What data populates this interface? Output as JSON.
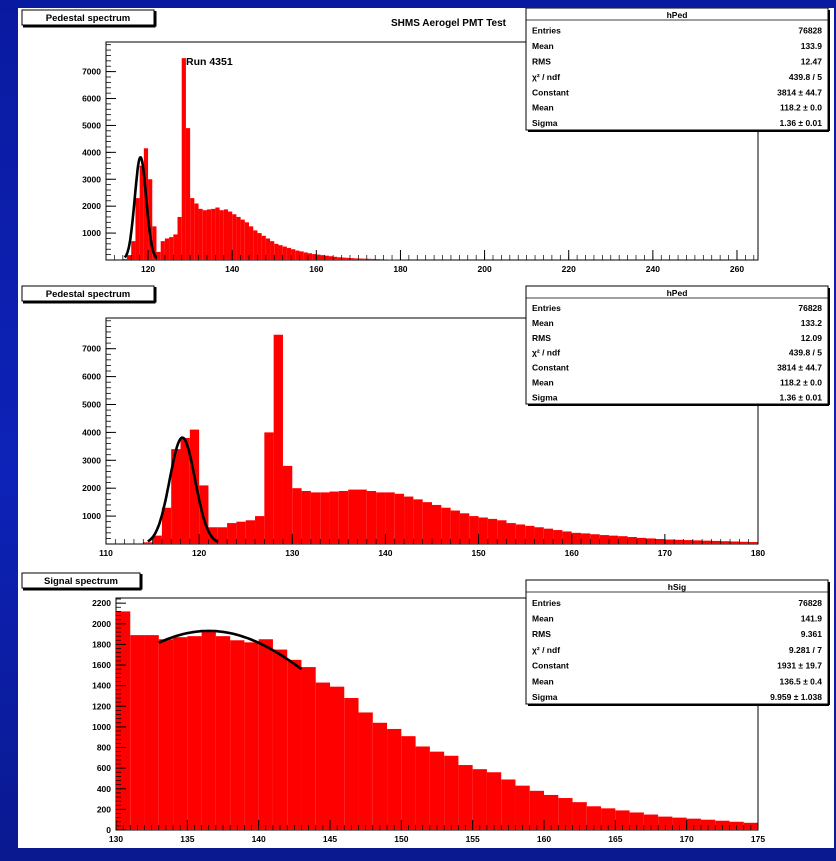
{
  "figure": {
    "title": "SHMS Aerogel PMT Test",
    "annotation": "Run  4351"
  },
  "colors": {
    "histogram_fill": "#ff0000",
    "fit_line": "#000000",
    "frame": "#000000",
    "background": "#ffffff"
  },
  "chart_data": [
    {
      "type": "bar",
      "pad_title": "Pedestal spectrum",
      "xlabel": "",
      "ylabel": "",
      "xlim": [
        110,
        265
      ],
      "ylim": [
        0,
        8100
      ],
      "x_ticks": [
        120,
        140,
        160,
        180,
        200,
        220,
        240,
        260
      ],
      "y_ticks": [
        1000,
        2000,
        3000,
        4000,
        5000,
        6000,
        7000
      ],
      "bin_width": 1,
      "bins_x": [
        114,
        115,
        116,
        117,
        118,
        119,
        120,
        121,
        122,
        123,
        124,
        125,
        126,
        127,
        128,
        129,
        130,
        131,
        132,
        133,
        134,
        135,
        136,
        137,
        138,
        139,
        140,
        141,
        142,
        143,
        144,
        145,
        146,
        147,
        148,
        149,
        150,
        151,
        152,
        153,
        154,
        155,
        156,
        157,
        158,
        159,
        160,
        161,
        162,
        163,
        164,
        165,
        166,
        167,
        168,
        169,
        170,
        171,
        172,
        173,
        174,
        175,
        176,
        177,
        178,
        179,
        180
      ],
      "bins_y": [
        40,
        180,
        700,
        2300,
        3500,
        4150,
        3000,
        1250,
        300,
        700,
        800,
        850,
        950,
        1600,
        7500,
        4900,
        2300,
        2100,
        1900,
        1850,
        1880,
        1900,
        1950,
        1850,
        1880,
        1800,
        1700,
        1600,
        1500,
        1400,
        1250,
        1100,
        1000,
        900,
        800,
        700,
        600,
        550,
        500,
        450,
        400,
        350,
        320,
        280,
        250,
        220,
        200,
        180,
        160,
        140,
        120,
        100,
        90,
        80,
        70,
        60,
        55,
        50,
        45,
        40,
        35,
        30,
        25,
        20,
        15,
        10,
        5
      ],
      "fit": {
        "constant": 3814,
        "mean": 118.2,
        "sigma": 1.36,
        "x_range": [
          114.5,
          122
        ]
      },
      "stats": {
        "name": "hPed",
        "rows": [
          [
            "Entries",
            "76828"
          ],
          [
            "Mean",
            "133.9"
          ],
          [
            "RMS",
            "12.47"
          ],
          [
            "χ² / ndf",
            "439.8 / 5"
          ],
          [
            "Constant",
            "3814 ± 44.7"
          ],
          [
            "Mean",
            "118.2 ± 0.0"
          ],
          [
            "Sigma",
            "1.36 ± 0.01"
          ]
        ]
      }
    },
    {
      "type": "bar",
      "pad_title": "Pedestal spectrum",
      "xlabel": "",
      "ylabel": "",
      "xlim": [
        110,
        180
      ],
      "ylim": [
        0,
        8100
      ],
      "x_ticks": [
        110,
        120,
        130,
        140,
        150,
        160,
        170,
        180
      ],
      "y_ticks": [
        1000,
        2000,
        3000,
        4000,
        5000,
        6000,
        7000
      ],
      "bin_width": 1,
      "bins_x": [
        114,
        115,
        116,
        117,
        118,
        119,
        120,
        121,
        122,
        123,
        124,
        125,
        126,
        127,
        128,
        129,
        130,
        131,
        132,
        133,
        134,
        135,
        136,
        137,
        138,
        139,
        140,
        141,
        142,
        143,
        144,
        145,
        146,
        147,
        148,
        149,
        150,
        151,
        152,
        153,
        154,
        155,
        156,
        157,
        158,
        159,
        160,
        161,
        162,
        163,
        164,
        165,
        166,
        167,
        168,
        169,
        170,
        171,
        172,
        173,
        174,
        175,
        176,
        177,
        178,
        179
      ],
      "bins_y": [
        60,
        300,
        1300,
        3400,
        3800,
        4100,
        2100,
        600,
        600,
        750,
        800,
        850,
        1000,
        4000,
        7500,
        2800,
        2000,
        1900,
        1850,
        1850,
        1880,
        1900,
        1950,
        1950,
        1900,
        1850,
        1850,
        1800,
        1700,
        1600,
        1500,
        1400,
        1300,
        1200,
        1100,
        1000,
        950,
        900,
        850,
        750,
        700,
        650,
        600,
        550,
        500,
        450,
        400,
        380,
        350,
        320,
        300,
        280,
        250,
        220,
        200,
        180,
        160,
        150,
        140,
        130,
        120,
        110,
        100,
        90,
        80,
        70
      ],
      "fit": {
        "constant": 3814,
        "mean": 118.2,
        "sigma": 1.36,
        "x_range": [
          114.5,
          122
        ]
      },
      "stats": {
        "name": "hPed",
        "rows": [
          [
            "Entries",
            "76828"
          ],
          [
            "Mean",
            "133.2"
          ],
          [
            "RMS",
            "12.09"
          ],
          [
            "χ² / ndf",
            "439.8 / 5"
          ],
          [
            "Constant",
            "3814 ± 44.7"
          ],
          [
            "Mean",
            "118.2 ± 0.0"
          ],
          [
            "Sigma",
            "1.36 ± 0.01"
          ]
        ]
      }
    },
    {
      "type": "bar",
      "pad_title": "Signal spectrum",
      "xlabel": "",
      "ylabel": "",
      "xlim": [
        130,
        175
      ],
      "ylim": [
        0,
        2250
      ],
      "x_ticks": [
        130,
        135,
        140,
        145,
        150,
        155,
        160,
        165,
        170,
        175
      ],
      "y_ticks": [
        0,
        200,
        400,
        600,
        800,
        1000,
        1200,
        1400,
        1600,
        1800,
        2000,
        2200
      ],
      "bin_width": 1,
      "bins_x": [
        130,
        131,
        132,
        133,
        134,
        135,
        136,
        137,
        138,
        139,
        140,
        141,
        142,
        143,
        144,
        145,
        146,
        147,
        148,
        149,
        150,
        151,
        152,
        153,
        154,
        155,
        156,
        157,
        158,
        159,
        160,
        161,
        162,
        163,
        164,
        165,
        166,
        167,
        168,
        169,
        170,
        171,
        172,
        173,
        174
      ],
      "bins_y": [
        2120,
        1890,
        1890,
        1850,
        1870,
        1880,
        1920,
        1880,
        1840,
        1820,
        1850,
        1750,
        1650,
        1580,
        1430,
        1390,
        1280,
        1140,
        1040,
        980,
        910,
        810,
        760,
        720,
        630,
        590,
        560,
        490,
        430,
        380,
        340,
        310,
        270,
        230,
        210,
        190,
        170,
        150,
        130,
        120,
        110,
        100,
        90,
        80,
        70
      ],
      "fit": {
        "constant": 1931,
        "mean": 136.5,
        "sigma": 9.959,
        "x_range": [
          133,
          143
        ]
      },
      "stats": {
        "name": "hSig",
        "rows": [
          [
            "Entries",
            "76828"
          ],
          [
            "Mean",
            "141.9"
          ],
          [
            "RMS",
            "9.361"
          ],
          [
            "χ² / ndf",
            "9.281 / 7"
          ],
          [
            "Constant",
            "1931 ± 19.7"
          ],
          [
            "Mean",
            "136.5 ± 0.4"
          ],
          [
            "Sigma",
            "9.959 ± 1.038"
          ]
        ]
      }
    }
  ]
}
